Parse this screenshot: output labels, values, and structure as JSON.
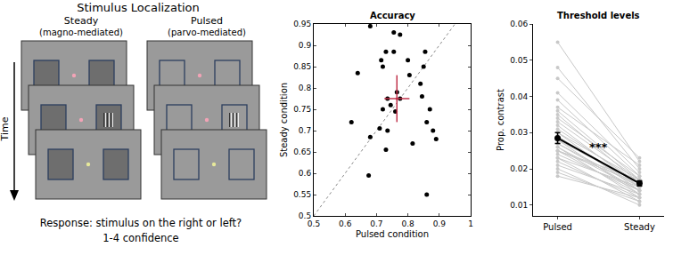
{
  "diagram": {
    "title": "Stimulus Localization",
    "panels": [
      {
        "label": "Steady",
        "sublabel": "(magno-mediated)"
      },
      {
        "label": "Pulsed",
        "sublabel": "(parvo-mediated)"
      }
    ],
    "time_label": "Time",
    "response": [
      "Response: stimulus on the right or left?",
      "1-4 confidence"
    ]
  },
  "chart_data": [
    {
      "type": "scatter",
      "title": "Accuracy",
      "x_label": "Pulsed condition",
      "y_label": "Steady condition",
      "x": [
        0.68,
        0.755,
        0.775,
        0.755,
        0.73,
        0.715,
        0.64,
        0.855,
        0.8,
        0.72,
        0.805,
        0.85,
        0.84,
        0.775,
        0.765,
        0.735,
        0.72,
        0.745,
        0.76,
        0.845,
        0.87,
        0.62,
        0.71,
        0.68,
        0.735,
        0.86,
        0.88,
        0.89,
        0.815,
        0.73,
        0.675,
        0.86
      ],
      "values": [
        0.945,
        0.93,
        0.925,
        0.885,
        0.885,
        0.865,
        0.835,
        0.885,
        0.865,
        0.85,
        0.83,
        0.85,
        0.81,
        0.775,
        0.79,
        0.775,
        0.75,
        0.76,
        0.745,
        0.78,
        0.75,
        0.72,
        0.705,
        0.685,
        0.7,
        0.72,
        0.7,
        0.68,
        0.67,
        0.655,
        0.595,
        0.55
      ],
      "color": "#000000",
      "mean": {
        "x": 0.765,
        "value": 0.775,
        "x_error": 0.04,
        "error": 0.055,
        "color": "#c0304a"
      },
      "identity_line": {
        "x": [
          0.5,
          1
        ],
        "values": [
          0.5,
          1
        ],
        "line_style": "dot",
        "color": "#888888"
      },
      "xlim": [
        0.5,
        1
      ],
      "xticks": [
        0.5,
        0.6,
        0.7,
        0.8,
        0.9,
        1
      ],
      "ylim": [
        0.5,
        0.95
      ],
      "yticks": [
        0.5,
        0.55,
        0.6,
        0.65,
        0.7,
        0.75,
        0.8,
        0.85,
        0.9,
        0.95
      ]
    },
    {
      "type": "line",
      "title": "Threshold levels",
      "y_label": "Prop. contrast",
      "categories": [
        "Pulsed",
        "Steady"
      ],
      "subjects": {
        "color": "#c8c8c8",
        "values": [
          [
            0.055,
            0.022
          ],
          [
            0.048,
            0.02
          ],
          [
            0.045,
            0.023
          ],
          [
            0.041,
            0.019
          ],
          [
            0.039,
            0.018
          ],
          [
            0.037,
            0.021
          ],
          [
            0.036,
            0.017
          ],
          [
            0.035,
            0.016
          ],
          [
            0.034,
            0.018
          ],
          [
            0.033,
            0.017
          ],
          [
            0.032,
            0.015
          ],
          [
            0.031,
            0.016
          ],
          [
            0.03,
            0.014
          ],
          [
            0.03,
            0.017
          ],
          [
            0.029,
            0.015
          ],
          [
            0.028,
            0.016
          ],
          [
            0.028,
            0.013
          ],
          [
            0.027,
            0.015
          ],
          [
            0.026,
            0.014
          ],
          [
            0.026,
            0.012
          ],
          [
            0.025,
            0.016
          ],
          [
            0.025,
            0.013
          ],
          [
            0.024,
            0.014
          ],
          [
            0.023,
            0.011
          ],
          [
            0.023,
            0.015
          ],
          [
            0.022,
            0.012
          ],
          [
            0.021,
            0.013
          ],
          [
            0.02,
            0.01
          ],
          [
            0.019,
            0.011
          ],
          [
            0.018,
            0.012
          ],
          [
            0.025,
            0.017
          ],
          [
            0.027,
            0.014
          ]
        ]
      },
      "mean": {
        "color": "#000000",
        "values": [
          0.0285,
          0.016
        ],
        "errors": [
          0.0015,
          0.0007
        ]
      },
      "annotation": "***",
      "ylim": [
        0.007,
        0.06
      ],
      "yticks": [
        0.01,
        0.02,
        0.03,
        0.04,
        0.05,
        0.06
      ]
    }
  ]
}
